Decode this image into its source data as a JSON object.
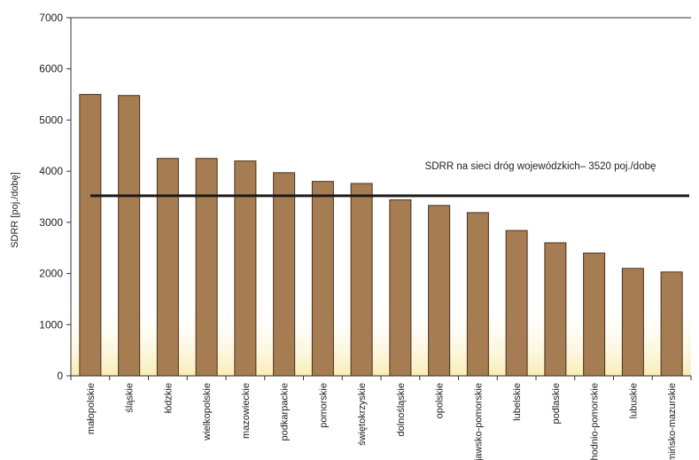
{
  "chart_data": {
    "type": "bar",
    "title": "",
    "ylabel": "SDRR [poj./dobę]",
    "xlabel": "",
    "ylim": [
      0,
      7000
    ],
    "yticks": [
      0,
      1000,
      2000,
      3000,
      4000,
      5000,
      6000,
      7000
    ],
    "ytick_labels": [
      "0",
      "1000",
      "2000",
      "3000",
      "4000",
      "5000",
      "6000",
      "7000"
    ],
    "grid": false,
    "legend": "none",
    "categories": [
      "małopolskie",
      "śląskie",
      "łódzkie",
      "wielkopolskie",
      "mazowieckie",
      "podkarpackie",
      "pomorskie",
      "świętokrzyskie",
      "dolnośląskie",
      "opolskie",
      "kujawsko-pomorskie",
      "lubelskie",
      "podlaskie",
      "zachodnio-pomorskie",
      "lubuskie",
      "warmińsko-mazurskie"
    ],
    "values": [
      5500,
      5480,
      4250,
      4250,
      4200,
      3970,
      3800,
      3760,
      3440,
      3330,
      3190,
      2840,
      2600,
      2400,
      2100,
      2030
    ],
    "reference_line": {
      "value": 3520,
      "label": "SDRR na sieci dróg wojewódzkich– 3520 poj./dobę"
    },
    "colors": {
      "bar_fill": "#a67c52",
      "bar_stroke": "#4a3320",
      "reference_line": "#1a1a1a",
      "axis": "#333333",
      "background_tint": "#f7e9a6"
    }
  }
}
